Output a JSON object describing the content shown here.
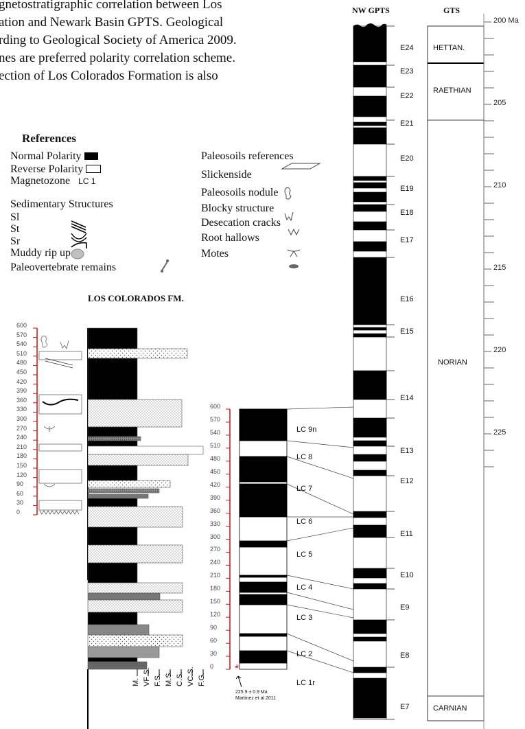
{
  "caption": {
    "lines": [
      "gnetostratigraphic correlation between Los",
      "ation and Newark Basin GPTS. Geological",
      "rding to Geological Society of America 2009.",
      "nes are preferred polarity correlation scheme.",
      "ection of Los Colorados Formation is also"
    ]
  },
  "references": {
    "title": "References",
    "normal_polarity": "Normal Polarity",
    "reverse_polarity": "Reverse Polarity",
    "magnetozone": "Magnetozone",
    "magnetozone_example": "LC 1",
    "sedimentary_title": "Sedimentary Structures",
    "sedimentary": [
      "Sl",
      "St",
      "Sr",
      "Muddy rip up"
    ],
    "paleovertebrate": "Paleovertebrate remains",
    "paleosoils_title": "Paleosoils references",
    "paleosoils": [
      "Slickenside",
      "Paleosoils nodule",
      "Blocky structure",
      "Desecation cracks",
      "Root hallows",
      "Motes"
    ]
  },
  "formation_title": "LOS COLORADOS FM.",
  "column_ticks": [
    "600",
    "570",
    "540",
    "510",
    "480",
    "450",
    "420",
    "390",
    "360",
    "330",
    "300",
    "270",
    "240",
    "210",
    "180",
    "150",
    "120",
    "90",
    "60",
    "30",
    "0"
  ],
  "grain_labels": [
    "M.",
    "VF S.",
    "F.S.",
    "M.S.",
    "C.S.",
    "VC.S.",
    "F.G."
  ],
  "age_note": {
    "line1": "225.9 ± 0.9 Ma",
    "line2": "Martinez et al 2011"
  },
  "lc_zones": [
    "LC 9n",
    "LC 8",
    "LC 7",
    "LC 6",
    "LC 5",
    "LC 4",
    "LC 3",
    "LC 2",
    "LC 1r"
  ],
  "nw_gpts": {
    "header": "NW GPTS",
    "zones": [
      "E24",
      "E23",
      "E22",
      "E21",
      "E20",
      "E19",
      "E18",
      "E17",
      "E16",
      "E15",
      "E14",
      "E13",
      "E12",
      "E11",
      "E10",
      "E9",
      "E8",
      "E7"
    ]
  },
  "gts": {
    "header": "GTS",
    "stages": [
      "HETTAN.",
      "RAETHIAN",
      "NORIAN",
      "CARNIAN"
    ],
    "age_ticks": [
      "200 Ma",
      "205",
      "210",
      "215",
      "220",
      "225"
    ]
  },
  "colors": {
    "normal": "#000000",
    "reverse": "#ffffff",
    "scale_red": "#cc1111",
    "grey": "#777777"
  }
}
